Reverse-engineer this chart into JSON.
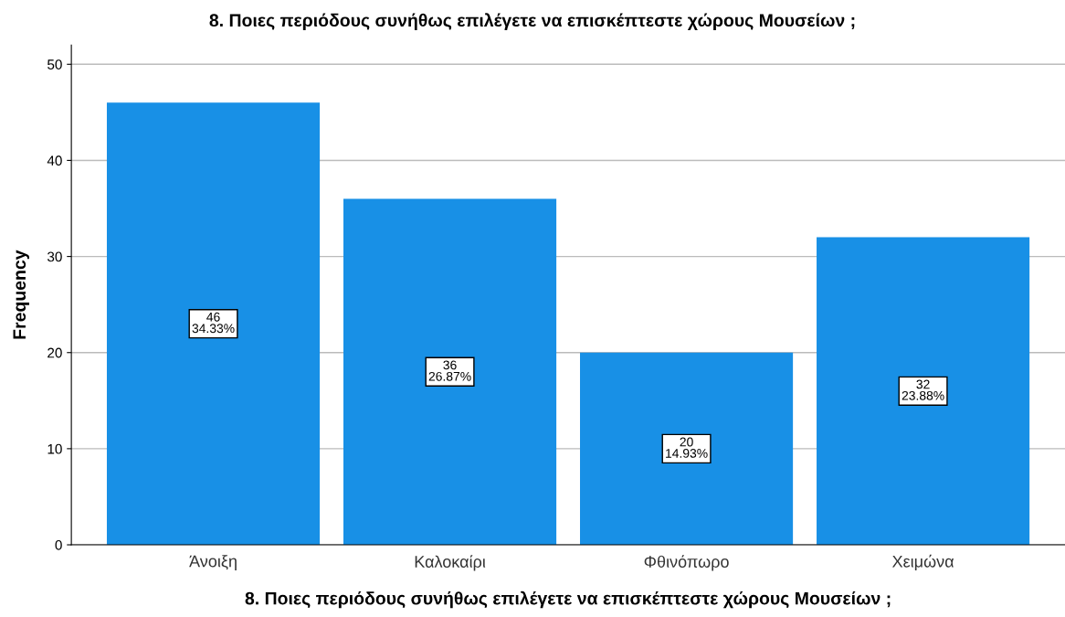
{
  "chart_data": {
    "type": "bar",
    "title": "8. Ποιες περιόδους συνήθως επιλέγετε να επισκέπτεστε χώρους Μουσείων ;",
    "xlabel": "8. Ποιες περιόδους συνήθως επιλέγετε να επισκέπτεστε χώρους Μουσείων ;",
    "ylabel": "Frequency",
    "categories": [
      "Άνοιξη",
      "Καλοκαίρι",
      "Φθινόπωρο",
      "Χειμώνα"
    ],
    "values": [
      46,
      36,
      20,
      32
    ],
    "value_labels": [
      "46\n34.33%",
      "36\n26.87%",
      "20\n14.93%",
      "32\n23.88%"
    ],
    "color": "#1890e6",
    "ylim": [
      0,
      52
    ],
    "yticks": [
      0,
      10,
      20,
      30,
      40,
      50
    ],
    "grid": "y"
  }
}
